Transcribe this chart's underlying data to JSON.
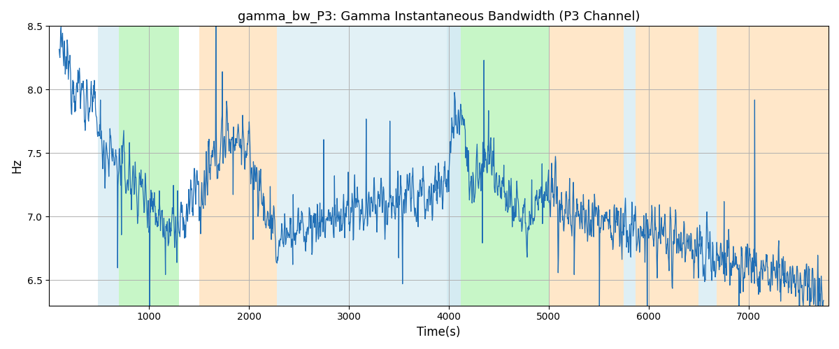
{
  "title": "gamma_bw_P3: Gamma Instantaneous Bandwidth (P3 Channel)",
  "xlabel": "Time(s)",
  "ylabel": "Hz",
  "ylim": [
    6.3,
    8.5
  ],
  "xlim": [
    0,
    7800
  ],
  "bg_regions": [
    {
      "xmin": 490,
      "xmax": 700,
      "color": "#add8e6",
      "alpha": 0.4
    },
    {
      "xmin": 700,
      "xmax": 1300,
      "color": "#90ee90",
      "alpha": 0.5
    },
    {
      "xmin": 1500,
      "xmax": 2280,
      "color": "#ffd59e",
      "alpha": 0.55
    },
    {
      "xmin": 2280,
      "xmax": 3980,
      "color": "#add8e6",
      "alpha": 0.35
    },
    {
      "xmin": 3980,
      "xmax": 4120,
      "color": "#add8e6",
      "alpha": 0.5
    },
    {
      "xmin": 4120,
      "xmax": 5000,
      "color": "#90ee90",
      "alpha": 0.5
    },
    {
      "xmin": 5000,
      "xmax": 5750,
      "color": "#ffd59e",
      "alpha": 0.55
    },
    {
      "xmin": 5750,
      "xmax": 5870,
      "color": "#add8e6",
      "alpha": 0.4
    },
    {
      "xmin": 5870,
      "xmax": 6500,
      "color": "#ffd59e",
      "alpha": 0.55
    },
    {
      "xmin": 6500,
      "xmax": 6680,
      "color": "#add8e6",
      "alpha": 0.4
    },
    {
      "xmin": 6680,
      "xmax": 7800,
      "color": "#ffd59e",
      "alpha": 0.55
    }
  ],
  "line_color": "#1f6eb5",
  "line_width": 0.9,
  "grid_color": "#b0b0b0",
  "seed": 12345,
  "n_points": 2000,
  "time_start": 100,
  "time_end": 7750
}
